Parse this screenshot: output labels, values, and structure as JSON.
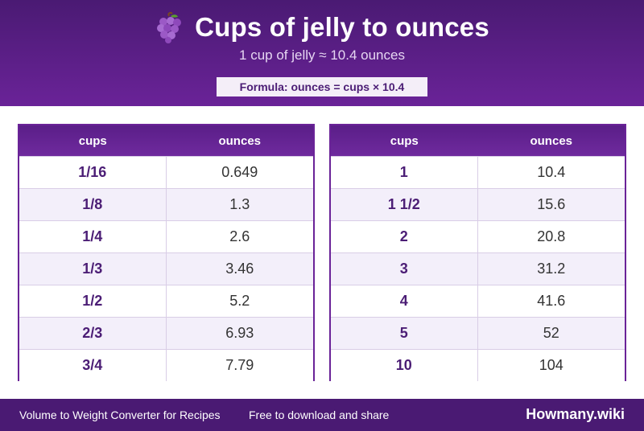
{
  "header": {
    "icon": "grapes-icon",
    "title": "Cups of jelly to ounces",
    "subtitle": "1 cup of jelly ≈ 10.4 ounces",
    "formula": "Formula: ounces = cups × 10.4"
  },
  "tables": [
    {
      "columns": [
        "cups",
        "ounces"
      ],
      "rows": [
        {
          "cups": "1/16",
          "ounces": "0.649"
        },
        {
          "cups": "1/8",
          "ounces": "1.3"
        },
        {
          "cups": "1/4",
          "ounces": "2.6"
        },
        {
          "cups": "1/3",
          "ounces": "3.46"
        },
        {
          "cups": "1/2",
          "ounces": "5.2"
        },
        {
          "cups": "2/3",
          "ounces": "6.93"
        },
        {
          "cups": "3/4",
          "ounces": "7.79"
        }
      ]
    },
    {
      "columns": [
        "cups",
        "ounces"
      ],
      "rows": [
        {
          "cups": "1",
          "ounces": "10.4"
        },
        {
          "cups": "1 1/2",
          "ounces": "15.6"
        },
        {
          "cups": "2",
          "ounces": "20.8"
        },
        {
          "cups": "3",
          "ounces": "31.2"
        },
        {
          "cups": "4",
          "ounces": "41.6"
        },
        {
          "cups": "5",
          "ounces": "52"
        },
        {
          "cups": "10",
          "ounces": "104"
        }
      ]
    }
  ],
  "footer": {
    "left": "Volume to Weight Converter for Recipes",
    "middle": "Free to download and share",
    "brand": "Howmany.wiki"
  },
  "colors": {
    "header_bg": "#4a1a73",
    "accent": "#6a2398",
    "cups_text": "#4b1d75",
    "row_alt": "#f3effa"
  }
}
